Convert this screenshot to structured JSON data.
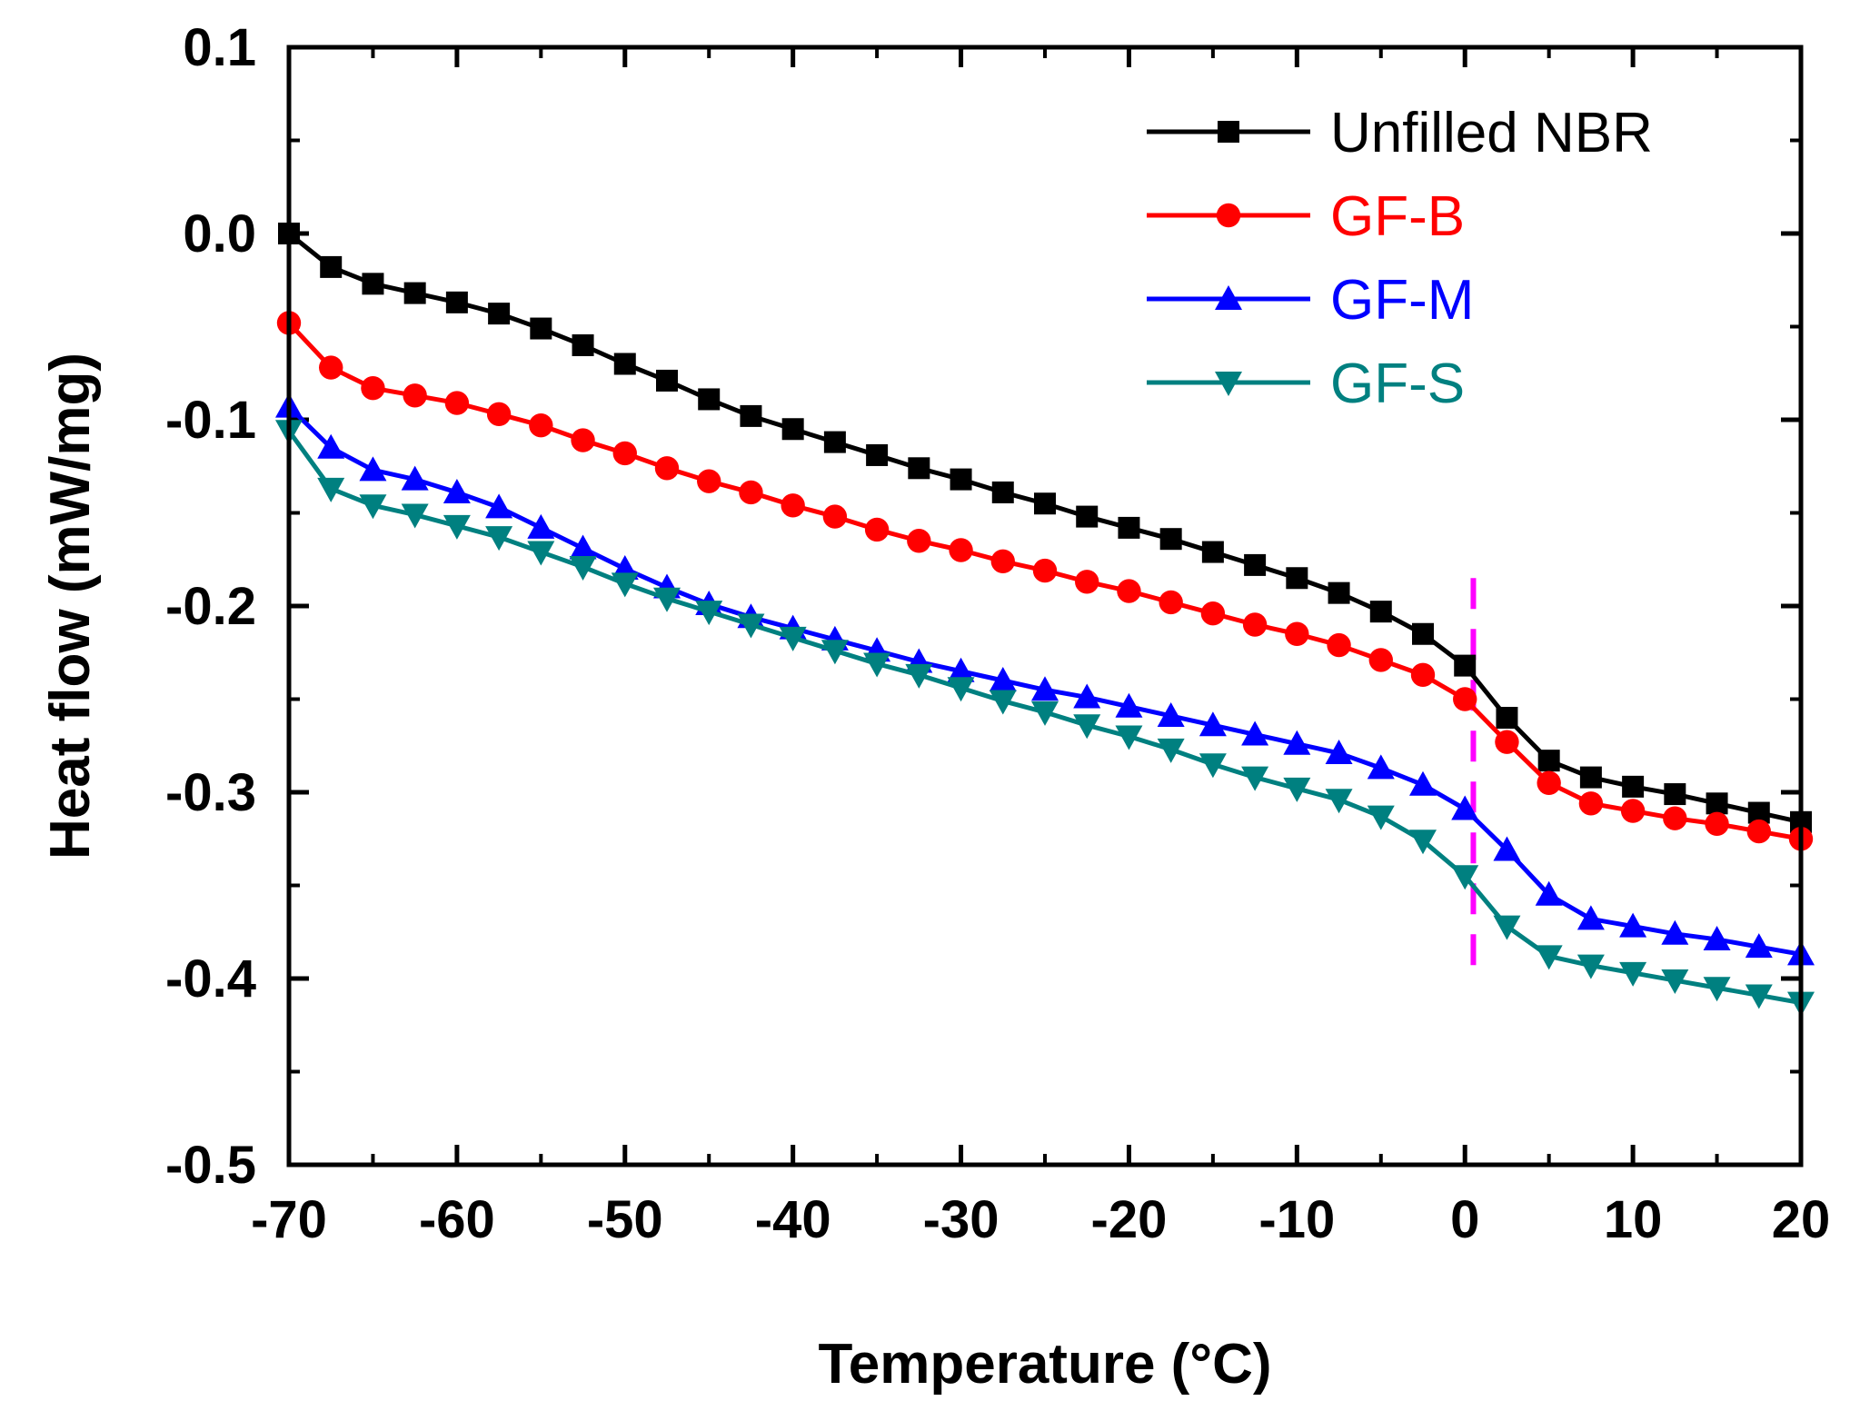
{
  "chart_data": {
    "type": "line",
    "title": "",
    "xlabel": "Temperature (°C)",
    "ylabel": "Heat flow (mW/mg)",
    "xlim": [
      -70,
      20
    ],
    "ylim": [
      -0.5,
      0.1
    ],
    "x_ticks": [
      -70,
      -60,
      -50,
      -40,
      -30,
      -20,
      -10,
      0,
      10,
      20
    ],
    "x_tick_labels": [
      "-70",
      "-60",
      "-50",
      "-40",
      "-30",
      "-20",
      "-10",
      "0",
      "10",
      "20"
    ],
    "y_ticks": [
      -0.5,
      -0.4,
      -0.3,
      -0.2,
      -0.1,
      0.0,
      0.1
    ],
    "y_tick_labels": [
      "-0.5",
      "-0.4",
      "-0.3",
      "-0.2",
      "-0.1",
      "0.0",
      "0.1"
    ],
    "x": [
      -70,
      -67.5,
      -65,
      -62.5,
      -60,
      -57.5,
      -55,
      -52.5,
      -50,
      -47.5,
      -45,
      -42.5,
      -40,
      -37.5,
      -35,
      -32.5,
      -30,
      -27.5,
      -25,
      -22.5,
      -20,
      -17.5,
      -15,
      -12.5,
      -10,
      -7.5,
      -5,
      -2.5,
      0,
      2.5,
      5,
      7.5,
      10,
      12.5,
      15,
      17.5,
      20
    ],
    "series": [
      {
        "name": "Unfilled NBR",
        "color": "#000000",
        "marker": "square",
        "values": [
          0.0,
          -0.018,
          -0.027,
          -0.032,
          -0.037,
          -0.043,
          -0.051,
          -0.06,
          -0.07,
          -0.079,
          -0.089,
          -0.098,
          -0.105,
          -0.112,
          -0.119,
          -0.126,
          -0.132,
          -0.139,
          -0.145,
          -0.152,
          -0.158,
          -0.164,
          -0.171,
          -0.178,
          -0.185,
          -0.193,
          -0.203,
          -0.215,
          -0.232,
          -0.26,
          -0.283,
          -0.292,
          -0.297,
          -0.301,
          -0.306,
          -0.311,
          -0.316
        ]
      },
      {
        "name": "GF-B",
        "color": "#ff0000",
        "marker": "circle",
        "values": [
          -0.048,
          -0.072,
          -0.083,
          -0.087,
          -0.091,
          -0.097,
          -0.103,
          -0.111,
          -0.118,
          -0.126,
          -0.133,
          -0.139,
          -0.146,
          -0.152,
          -0.159,
          -0.165,
          -0.17,
          -0.176,
          -0.181,
          -0.187,
          -0.192,
          -0.198,
          -0.204,
          -0.21,
          -0.215,
          -0.221,
          -0.229,
          -0.237,
          -0.25,
          -0.273,
          -0.295,
          -0.306,
          -0.31,
          -0.314,
          -0.317,
          -0.321,
          -0.325
        ]
      },
      {
        "name": "GF-M",
        "color": "#0000ff",
        "marker": "triangle-up",
        "values": [
          -0.093,
          -0.115,
          -0.127,
          -0.132,
          -0.139,
          -0.147,
          -0.158,
          -0.169,
          -0.18,
          -0.19,
          -0.199,
          -0.206,
          -0.212,
          -0.218,
          -0.224,
          -0.23,
          -0.235,
          -0.24,
          -0.245,
          -0.249,
          -0.254,
          -0.259,
          -0.264,
          -0.269,
          -0.274,
          -0.279,
          -0.287,
          -0.296,
          -0.309,
          -0.331,
          -0.355,
          -0.368,
          -0.372,
          -0.376,
          -0.379,
          -0.383,
          -0.387
        ]
      },
      {
        "name": "GF-S",
        "color": "#008080",
        "marker": "triangle-down",
        "values": [
          -0.106,
          -0.137,
          -0.146,
          -0.151,
          -0.157,
          -0.163,
          -0.171,
          -0.179,
          -0.188,
          -0.196,
          -0.203,
          -0.21,
          -0.217,
          -0.224,
          -0.231,
          -0.237,
          -0.244,
          -0.251,
          -0.257,
          -0.264,
          -0.27,
          -0.277,
          -0.285,
          -0.292,
          -0.298,
          -0.304,
          -0.313,
          -0.326,
          -0.345,
          -0.372,
          -0.388,
          -0.393,
          -0.397,
          -0.401,
          -0.405,
          -0.409,
          -0.413
        ]
      }
    ],
    "reference_line": {
      "x": 0.5,
      "color": "#ff00ff",
      "style": "dashed",
      "y_range": [
        -0.4,
        -0.185
      ]
    },
    "legend_position": "top-right",
    "grid": false
  }
}
